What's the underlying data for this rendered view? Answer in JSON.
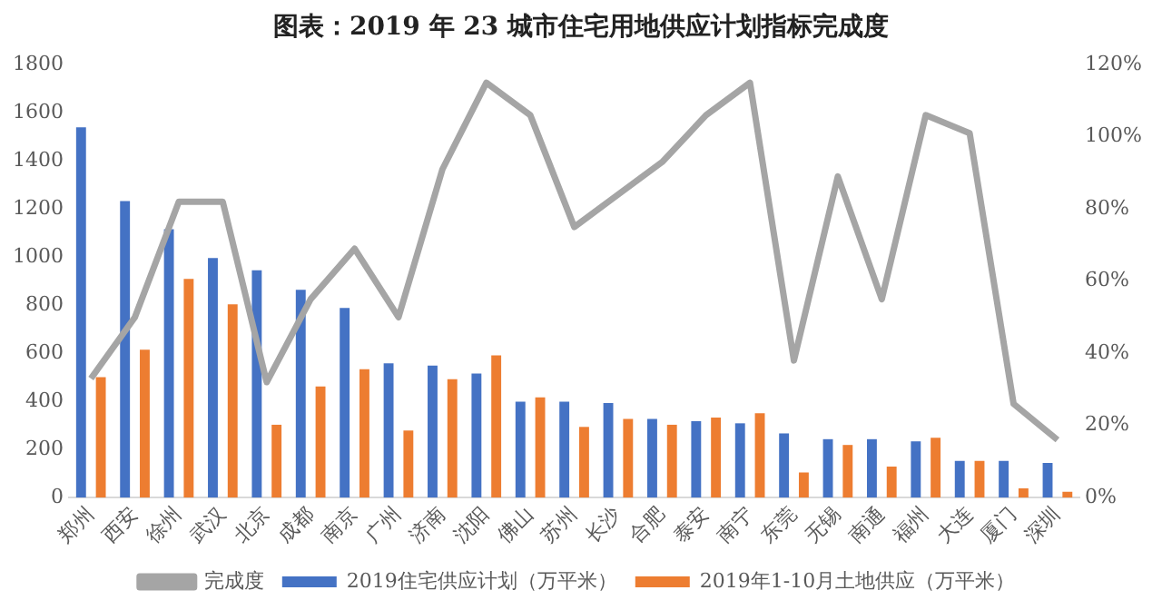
{
  "chart_data": {
    "type": "bar",
    "title": "图表：2019 年 23 城市住宅用地供应计划指标完成度",
    "categories": [
      "郑州",
      "西安",
      "徐州",
      "武汉",
      "北京",
      "成都",
      "南京",
      "广州",
      "济南",
      "沈阳",
      "佛山",
      "苏州",
      "长沙",
      "合肥",
      "泰安",
      "南宁",
      "东莞",
      "无锡",
      "南通",
      "福州",
      "大连",
      "厦门",
      "深圳"
    ],
    "series": [
      {
        "name": "2019住宅供应计划（万平米）",
        "color": "#4472c4",
        "values": [
          1539,
          1233,
          1116,
          996,
          945,
          864,
          789,
          558,
          549,
          516,
          399,
          399,
          393,
          327,
          318,
          309,
          267,
          243,
          243,
          234,
          153,
          153,
          144
        ]
      },
      {
        "name": "2019年1-10月土地供应（万平米）",
        "color": "#ed7d31",
        "values": [
          501,
          615,
          909,
          804,
          303,
          462,
          534,
          279,
          492,
          591,
          417,
          294,
          327,
          303,
          333,
          351,
          105,
          219,
          129,
          249,
          153,
          39,
          24
        ]
      },
      {
        "name": "完成度",
        "type": "line",
        "axis": "y2",
        "color": "#a5a5a5",
        "values": [
          33,
          50,
          82,
          82,
          32,
          55,
          69,
          50,
          91,
          115,
          106,
          75,
          84,
          93,
          106,
          115,
          38,
          89,
          55,
          106,
          101,
          26,
          16
        ]
      }
    ],
    "ylim": [
      0,
      1800
    ],
    "yticks": [
      0,
      200,
      400,
      600,
      800,
      1000,
      1200,
      1400,
      1600,
      1800
    ],
    "y2lim": [
      0,
      120
    ],
    "y2ticks": [
      {
        "value": 0,
        "label": "0%"
      },
      {
        "value": 20,
        "label": "20%"
      },
      {
        "value": 40,
        "label": "40%"
      },
      {
        "value": 60,
        "label": "60%"
      },
      {
        "value": 80,
        "label": "80%"
      },
      {
        "value": 100,
        "label": "100%"
      },
      {
        "value": 120,
        "label": "120%"
      }
    ],
    "grid": false,
    "legend": "bottom",
    "marker": "none"
  }
}
